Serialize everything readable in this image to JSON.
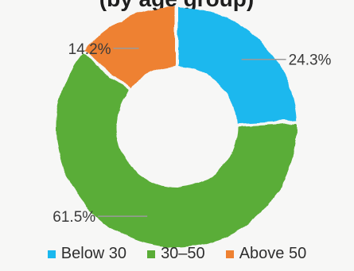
{
  "chart_data": {
    "type": "pie",
    "variant": "donut",
    "title": "(by age group)",
    "categories": [
      "Below 30",
      "30–50",
      "Above 50"
    ],
    "values": [
      24.3,
      61.5,
      14.2
    ],
    "labels": [
      "24.3%",
      "61.5%",
      "14.2%"
    ],
    "colors": [
      "#1ab8ee",
      "#5aad37",
      "#ee8131"
    ],
    "label_color": "#3a3a3a",
    "leader_color": "#9a9a9a",
    "legend_position": "bottom"
  }
}
